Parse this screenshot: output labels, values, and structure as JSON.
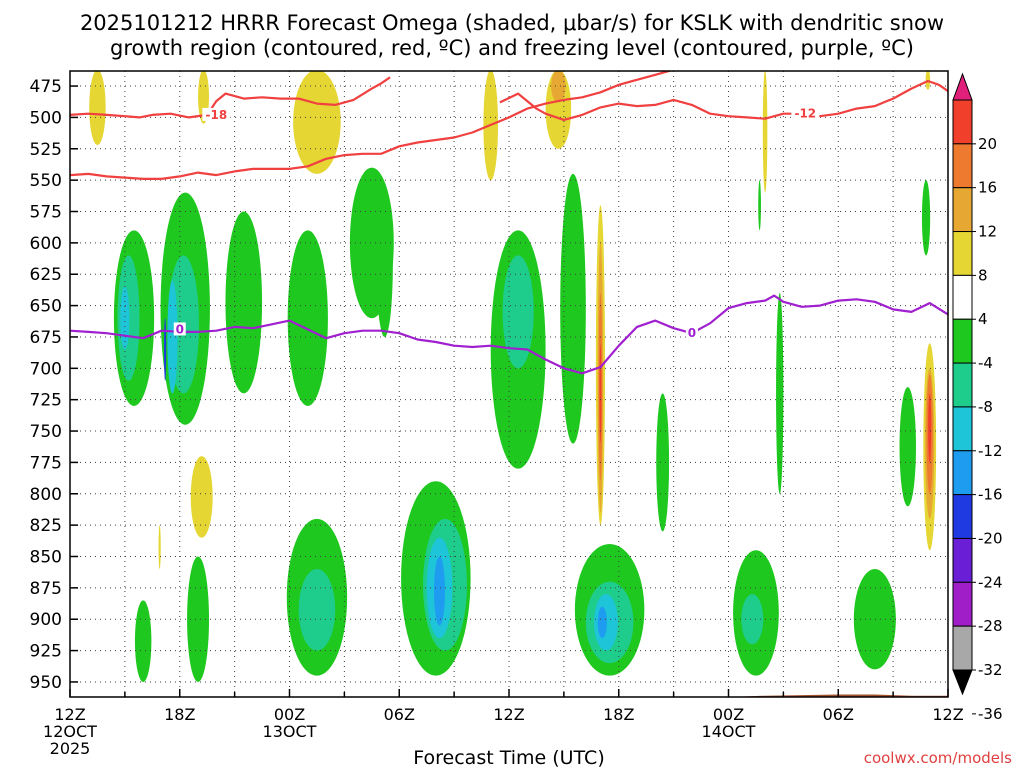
{
  "colors": {
    "background": "#ffffff",
    "neg_4_8": "#1ec81e",
    "neg_8_12": "#1ecc8c",
    "neg_12_16": "#1ec4d8",
    "neg_16_20": "#1e9cf0",
    "neg_20_24": "#1f3ae0",
    "pos_4_8": "#e6d633",
    "pos_8_12": "#e6a833",
    "pos_12_16": "#ee7a30",
    "pos_16_20": "#f0402c",
    "dgz_contour": "#f04040",
    "freezing_contour": "#a020d0",
    "ground": "#a0522d",
    "grid": "#404040"
  },
  "chart_data": {
    "type": "heatmap",
    "title_line1": "2025101212 HRRR Forecast Omega (shaded, μbar/s) for KSLK with dendritic snow",
    "title_line2": "growth region (contoured, red, ºC) and freezing level (contoured, purple, ºC)",
    "xlabel": "Forecast Time (UTC)",
    "credit": "coolwx.com/models",
    "x_range_hours": [
      0,
      48
    ],
    "y_range_hPa": [
      463,
      962
    ],
    "y_ticks": [
      475,
      500,
      525,
      550,
      575,
      600,
      625,
      650,
      675,
      700,
      725,
      750,
      775,
      800,
      825,
      850,
      875,
      900,
      925,
      950
    ],
    "x_ticks": [
      {
        "h": 0,
        "label": "12Z",
        "date": "12OCT",
        "year": "2025"
      },
      {
        "h": 6,
        "label": "18Z"
      },
      {
        "h": 12,
        "label": "00Z",
        "date": "13OCT"
      },
      {
        "h": 18,
        "label": "06Z"
      },
      {
        "h": 24,
        "label": "12Z"
      },
      {
        "h": 30,
        "label": "18Z"
      },
      {
        "h": 36,
        "label": "00Z",
        "date": "14OCT"
      },
      {
        "h": 42,
        "label": "06Z"
      },
      {
        "h": 48,
        "label": "12Z"
      }
    ],
    "colorbar": {
      "ticks": [
        "20",
        "16",
        "12",
        "8",
        "4",
        "-4",
        "-8",
        "-12",
        "-16",
        "-20",
        "-24",
        "-28",
        "-32",
        "-36"
      ],
      "bins": [
        {
          "range": [
            16,
            20
          ],
          "color": "#f0402c"
        },
        {
          "range": [
            12,
            16
          ],
          "color": "#ee7a30"
        },
        {
          "range": [
            8,
            12
          ],
          "color": "#e6a833"
        },
        {
          "range": [
            4,
            8
          ],
          "color": "#e6d633"
        },
        {
          "range": [
            -4,
            4
          ],
          "color": "#ffffff"
        },
        {
          "range": [
            -8,
            -4
          ],
          "color": "#1ec81e"
        },
        {
          "range": [
            -12,
            -8
          ],
          "color": "#1ecc8c"
        },
        {
          "range": [
            -16,
            -12
          ],
          "color": "#1ec4d8"
        },
        {
          "range": [
            -20,
            -16
          ],
          "color": "#1e9cf0"
        },
        {
          "range": [
            -24,
            -20
          ],
          "color": "#1f3ae0"
        },
        {
          "range": [
            -28,
            -24
          ],
          "color": "#6a1fd6"
        },
        {
          "range": [
            -32,
            -28
          ],
          "color": "#a01ec8"
        },
        {
          "range": [
            -36,
            -32
          ],
          "color": "#a8a8a8"
        }
      ],
      "top_arrow_color": "#e0207a",
      "bottom_arrow_color": "#000000"
    },
    "omega_regions": [
      {
        "value": "-4",
        "color": "#1ec81e",
        "cx": 3.5,
        "p0": 590,
        "p1": 730,
        "w": 2.2
      },
      {
        "value": "-4",
        "color": "#1ec81e",
        "cx": 6.3,
        "p0": 560,
        "p1": 745,
        "w": 2.7
      },
      {
        "value": "-4",
        "color": "#1ec81e",
        "cx": 9.5,
        "p0": 575,
        "p1": 720,
        "w": 2.0
      },
      {
        "value": "-4",
        "color": "#1ec81e",
        "cx": 13.0,
        "p0": 590,
        "p1": 730,
        "w": 2.2
      },
      {
        "value": "-4",
        "color": "#1ec81e",
        "cx": 16.5,
        "p0": 540,
        "p1": 660,
        "w": 2.4
      },
      {
        "value": "-4",
        "color": "#1ec81e",
        "cx": 17.2,
        "p0": 560,
        "p1": 675,
        "w": 0.9
      },
      {
        "value": "-4",
        "color": "#1ec81e",
        "cx": 24.5,
        "p0": 590,
        "p1": 780,
        "w": 3.0
      },
      {
        "value": "-4",
        "color": "#1ec81e",
        "cx": 27.5,
        "p0": 545,
        "p1": 760,
        "w": 1.4
      },
      {
        "value": "-4",
        "color": "#1ec81e",
        "cx": 13.5,
        "p0": 820,
        "p1": 945,
        "w": 3.3
      },
      {
        "value": "-4",
        "color": "#1ec81e",
        "cx": 20.0,
        "p0": 790,
        "p1": 945,
        "w": 3.8
      },
      {
        "value": "-4",
        "color": "#1ec81e",
        "cx": 29.5,
        "p0": 840,
        "p1": 945,
        "w": 3.8
      },
      {
        "value": "-4",
        "color": "#1ec81e",
        "cx": 37.5,
        "p0": 845,
        "p1": 945,
        "w": 2.5
      },
      {
        "value": "-4",
        "color": "#1ec81e",
        "cx": 44.0,
        "p0": 860,
        "p1": 940,
        "w": 2.3
      },
      {
        "value": "-4",
        "color": "#1ec81e",
        "cx": 4.0,
        "p0": 885,
        "p1": 950,
        "w": 0.9
      },
      {
        "value": "-4",
        "color": "#1ec81e",
        "cx": 7.0,
        "p0": 850,
        "p1": 950,
        "w": 1.2
      },
      {
        "value": "-4",
        "color": "#1ec81e",
        "cx": 32.4,
        "p0": 720,
        "p1": 830,
        "w": 0.7
      },
      {
        "value": "-4",
        "color": "#1ec81e",
        "cx": 45.8,
        "p0": 715,
        "p1": 810,
        "w": 0.9
      },
      {
        "value": "-4",
        "color": "#1ec81e",
        "cx": 46.8,
        "p0": 550,
        "p1": 610,
        "w": 0.45
      },
      {
        "value": "-4",
        "color": "#1ec81e",
        "cx": 37.7,
        "p0": 550,
        "p1": 590,
        "w": 0.15
      },
      {
        "value": "-4",
        "color": "#1ec81e",
        "cx": 38.8,
        "p0": 640,
        "p1": 800,
        "w": 0.4
      },
      {
        "value": "-8",
        "color": "#1ecc8c",
        "cx": 3.2,
        "p0": 610,
        "p1": 710,
        "w": 1.2
      },
      {
        "value": "-8",
        "color": "#1ecc8c",
        "cx": 6.2,
        "p0": 610,
        "p1": 720,
        "w": 1.7
      },
      {
        "value": "-8",
        "color": "#1ecc8c",
        "cx": 24.5,
        "p0": 610,
        "p1": 700,
        "w": 1.7
      },
      {
        "value": "-8",
        "color": "#1ecc8c",
        "cx": 13.5,
        "p0": 860,
        "p1": 925,
        "w": 2.0
      },
      {
        "value": "-8",
        "color": "#1ecc8c",
        "cx": 20.5,
        "p0": 820,
        "p1": 925,
        "w": 2.4
      },
      {
        "value": "-8",
        "color": "#1ecc8c",
        "cx": 29.5,
        "p0": 870,
        "p1": 935,
        "w": 2.6
      },
      {
        "value": "-8",
        "color": "#1ecc8c",
        "cx": 37.3,
        "p0": 880,
        "p1": 920,
        "w": 1.2
      },
      {
        "value": "-12",
        "color": "#1ec4d8",
        "cx": 3.0,
        "p0": 635,
        "p1": 685,
        "w": 0.5
      },
      {
        "value": "-12",
        "color": "#1ec4d8",
        "cx": 5.6,
        "p0": 630,
        "p1": 720,
        "w": 0.55
      },
      {
        "value": "-12",
        "color": "#1ec4d8",
        "cx": 20.2,
        "p0": 835,
        "p1": 915,
        "w": 1.4
      },
      {
        "value": "-12",
        "color": "#1ec4d8",
        "cx": 29.3,
        "p0": 880,
        "p1": 925,
        "w": 1.3
      },
      {
        "value": "-16",
        "color": "#1e9cf0",
        "cx": 20.2,
        "p0": 850,
        "p1": 905,
        "w": 0.6
      },
      {
        "value": "-16",
        "color": "#1e9cf0",
        "cx": 29.1,
        "p0": 890,
        "p1": 915,
        "w": 0.5
      },
      {
        "value": "-20",
        "color": "#1f3ae0",
        "cx": 5.2,
        "p0": 660,
        "p1": 710,
        "w": 0.12
      },
      {
        "value": "4",
        "color": "#e6d633",
        "cx": 1.5,
        "p0": 462,
        "p1": 522,
        "w": 0.9
      },
      {
        "value": "4",
        "color": "#e6d633",
        "cx": 7.3,
        "p0": 462,
        "p1": 505,
        "w": 0.6
      },
      {
        "value": "4",
        "color": "#e6d633",
        "cx": 13.5,
        "p0": 462,
        "p1": 545,
        "w": 2.6
      },
      {
        "value": "4",
        "color": "#e6d633",
        "cx": 23.0,
        "p0": 462,
        "p1": 550,
        "w": 0.8
      },
      {
        "value": "4",
        "color": "#e6d633",
        "cx": 26.7,
        "p0": 462,
        "p1": 525,
        "w": 1.4
      },
      {
        "value": "4",
        "color": "#e6d633",
        "cx": 38.0,
        "p0": 462,
        "p1": 560,
        "w": 0.25
      },
      {
        "value": "4",
        "color": "#e6d633",
        "cx": 7.2,
        "p0": 770,
        "p1": 835,
        "w": 1.2
      },
      {
        "value": "4",
        "color": "#e6d633",
        "cx": 4.9,
        "p0": 825,
        "p1": 860,
        "w": 0.12
      },
      {
        "value": "4",
        "color": "#e6d633",
        "cx": 29.0,
        "p0": 570,
        "p1": 825,
        "w": 0.5
      },
      {
        "value": "4",
        "color": "#e6d633",
        "cx": 47.0,
        "p0": 680,
        "p1": 845,
        "w": 0.7
      },
      {
        "value": "4",
        "color": "#e6d633",
        "cx": 46.9,
        "p0": 462,
        "p1": 478,
        "w": 0.25
      },
      {
        "value": "8",
        "color": "#e6a833",
        "cx": 26.7,
        "p0": 462,
        "p1": 488,
        "w": 0.8
      },
      {
        "value": "8",
        "color": "#e6a833",
        "cx": 29.0,
        "p0": 600,
        "p1": 815,
        "w": 0.3
      },
      {
        "value": "8",
        "color": "#e6a833",
        "cx": 47.0,
        "p0": 700,
        "p1": 820,
        "w": 0.5
      },
      {
        "value": "12",
        "color": "#ee7a30",
        "cx": 29.0,
        "p0": 640,
        "p1": 790,
        "w": 0.2
      },
      {
        "value": "12",
        "color": "#ee7a30",
        "cx": 47.0,
        "p0": 705,
        "p1": 800,
        "w": 0.35
      },
      {
        "value": "16",
        "color": "#f0402c",
        "cx": 29.0,
        "p0": 680,
        "p1": 760,
        "w": 0.1
      },
      {
        "value": "16",
        "color": "#f0402c",
        "cx": 47.0,
        "p0": 720,
        "p1": 775,
        "w": 0.17
      }
    ],
    "dgz_minus12_label": "-12",
    "dgz_minus12": [
      [
        0,
        546
      ],
      [
        1,
        545
      ],
      [
        2,
        547
      ],
      [
        3,
        548
      ],
      [
        4,
        549
      ],
      [
        5,
        549
      ],
      [
        6,
        547
      ],
      [
        7,
        544
      ],
      [
        8,
        546
      ],
      [
        9,
        543
      ],
      [
        10,
        541
      ],
      [
        11,
        541
      ],
      [
        12,
        541
      ],
      [
        13,
        539
      ],
      [
        14,
        533
      ],
      [
        15,
        530
      ],
      [
        16,
        529
      ],
      [
        17,
        529
      ],
      [
        18,
        523
      ],
      [
        19,
        520
      ],
      [
        20,
        518
      ],
      [
        21,
        516
      ],
      [
        22,
        512
      ],
      [
        23,
        506
      ],
      [
        24,
        500
      ],
      [
        25,
        493
      ],
      [
        26,
        489
      ],
      [
        27,
        486
      ],
      [
        28,
        484
      ],
      [
        29,
        480
      ],
      [
        30,
        474
      ],
      [
        31,
        470
      ],
      [
        32,
        466
      ],
      [
        33,
        462
      ]
    ],
    "dgz_minus18_label": "-18",
    "dgz_minus18": [
      [
        0,
        498
      ],
      [
        1,
        497
      ],
      [
        2,
        498
      ],
      [
        3,
        499
      ],
      [
        3.8,
        500
      ],
      [
        4.5,
        498
      ],
      [
        5.5,
        497
      ],
      [
        6.5,
        500
      ],
      [
        7.5,
        498
      ],
      [
        8,
        487
      ],
      [
        8.5,
        481
      ],
      [
        9.5,
        485
      ],
      [
        10.5,
        484
      ],
      [
        11.5,
        485
      ],
      [
        12.5,
        485
      ],
      [
        13.5,
        489
      ],
      [
        14.5,
        490
      ],
      [
        15.5,
        486
      ],
      [
        16.5,
        477
      ],
      [
        17,
        473
      ],
      [
        17.5,
        468
      ]
    ],
    "dgz_upper_label": "-12",
    "dgz_upper": [
      [
        23.5,
        488
      ],
      [
        24.5,
        481
      ],
      [
        25.5,
        493
      ],
      [
        26,
        497
      ],
      [
        27,
        502
      ],
      [
        28,
        498
      ],
      [
        29,
        492
      ],
      [
        30,
        489
      ],
      [
        31,
        491
      ],
      [
        32,
        490
      ],
      [
        33,
        486
      ],
      [
        34,
        490
      ],
      [
        35,
        497
      ],
      [
        36,
        499
      ],
      [
        37,
        500
      ],
      [
        38,
        501
      ],
      [
        39,
        497
      ],
      [
        40,
        497
      ],
      [
        41,
        499
      ],
      [
        42,
        497
      ],
      [
        43,
        493
      ],
      [
        44,
        491
      ],
      [
        45,
        485
      ],
      [
        46,
        477
      ],
      [
        46.9,
        471
      ],
      [
        47.5,
        474
      ],
      [
        48,
        479
      ]
    ],
    "freezing_label": "0",
    "freezing_level": [
      [
        0,
        670
      ],
      [
        1,
        671
      ],
      [
        2,
        672
      ],
      [
        3,
        674
      ],
      [
        4,
        676
      ],
      [
        5,
        670
      ],
      [
        6,
        671
      ],
      [
        7,
        671
      ],
      [
        8,
        670
      ],
      [
        9,
        667
      ],
      [
        10,
        668
      ],
      [
        11,
        665
      ],
      [
        12,
        662
      ],
      [
        13,
        669
      ],
      [
        14,
        676
      ],
      [
        15,
        672
      ],
      [
        16,
        670
      ],
      [
        17,
        670
      ],
      [
        18,
        672
      ],
      [
        19,
        677
      ],
      [
        20,
        679
      ],
      [
        21,
        682
      ],
      [
        22,
        683
      ],
      [
        23,
        682
      ],
      [
        24,
        684
      ],
      [
        25,
        685
      ],
      [
        26,
        693
      ],
      [
        27,
        700
      ],
      [
        28,
        704
      ],
      [
        29,
        699
      ],
      [
        30,
        682
      ],
      [
        31,
        667
      ],
      [
        32,
        662
      ],
      [
        33,
        668
      ],
      [
        34,
        672
      ],
      [
        35,
        664
      ],
      [
        36,
        652
      ],
      [
        37,
        648
      ],
      [
        38,
        646
      ],
      [
        38.5,
        642
      ],
      [
        39,
        647
      ],
      [
        40,
        651
      ],
      [
        41,
        650
      ],
      [
        42,
        646
      ],
      [
        43,
        645
      ],
      [
        44,
        647
      ],
      [
        45,
        653
      ],
      [
        46,
        655
      ],
      [
        47,
        648
      ],
      [
        48,
        657
      ]
    ],
    "ground": [
      [
        0,
        962
      ],
      [
        12,
        962
      ],
      [
        18,
        962
      ],
      [
        24,
        962
      ],
      [
        30,
        962
      ],
      [
        36,
        962
      ],
      [
        38,
        961
      ],
      [
        42,
        960
      ],
      [
        44,
        960
      ],
      [
        46,
        961
      ],
      [
        48,
        961
      ]
    ]
  }
}
